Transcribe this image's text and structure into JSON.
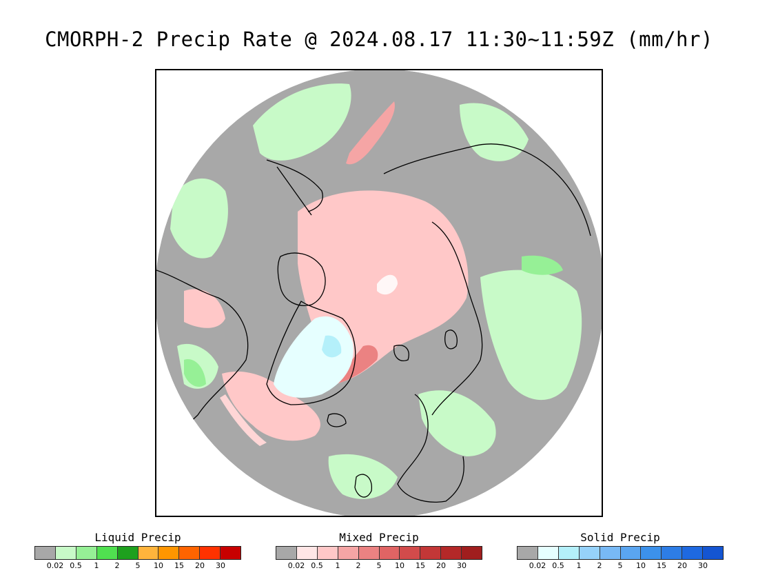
{
  "title": "CMORPH-2 Precip Rate @ 2024.08.17 11:30~11:59Z (mm/hr)",
  "map": {
    "projection": "north-polar-stereographic",
    "region": "Northern Hemisphere high latitudes",
    "background_color": "#a8a8a8",
    "coastline_color": "#000000"
  },
  "legends": [
    {
      "title": "Liquid Precip",
      "colors": [
        "#a8a8a8",
        "#c8fac8",
        "#96f096",
        "#50e050",
        "#1ea01e",
        "#ffb43c",
        "#ff9600",
        "#ff6400",
        "#ff3200",
        "#c80000"
      ],
      "ticks": [
        "0.02",
        "0.5",
        "1",
        "2",
        "5",
        "10",
        "15",
        "20",
        "30"
      ]
    },
    {
      "title": "Mixed Precip",
      "colors": [
        "#a8a8a8",
        "#ffe6e6",
        "#ffc8c8",
        "#f5a5a5",
        "#eb8282",
        "#e06464",
        "#d24b4b",
        "#c33737",
        "#b42828",
        "#a01e1e"
      ],
      "ticks": [
        "0.02",
        "0.5",
        "1",
        "2",
        "5",
        "10",
        "15",
        "20",
        "30"
      ]
    },
    {
      "title": "Solid Precip",
      "colors": [
        "#a8a8a8",
        "#e6ffff",
        "#b4f0fa",
        "#96d2fa",
        "#78b9f5",
        "#5aa5f0",
        "#3c91eb",
        "#2d7de6",
        "#1e69e1",
        "#1455d2"
      ],
      "ticks": [
        "0.02",
        "0.5",
        "1",
        "2",
        "5",
        "10",
        "15",
        "20",
        "30"
      ]
    }
  ]
}
